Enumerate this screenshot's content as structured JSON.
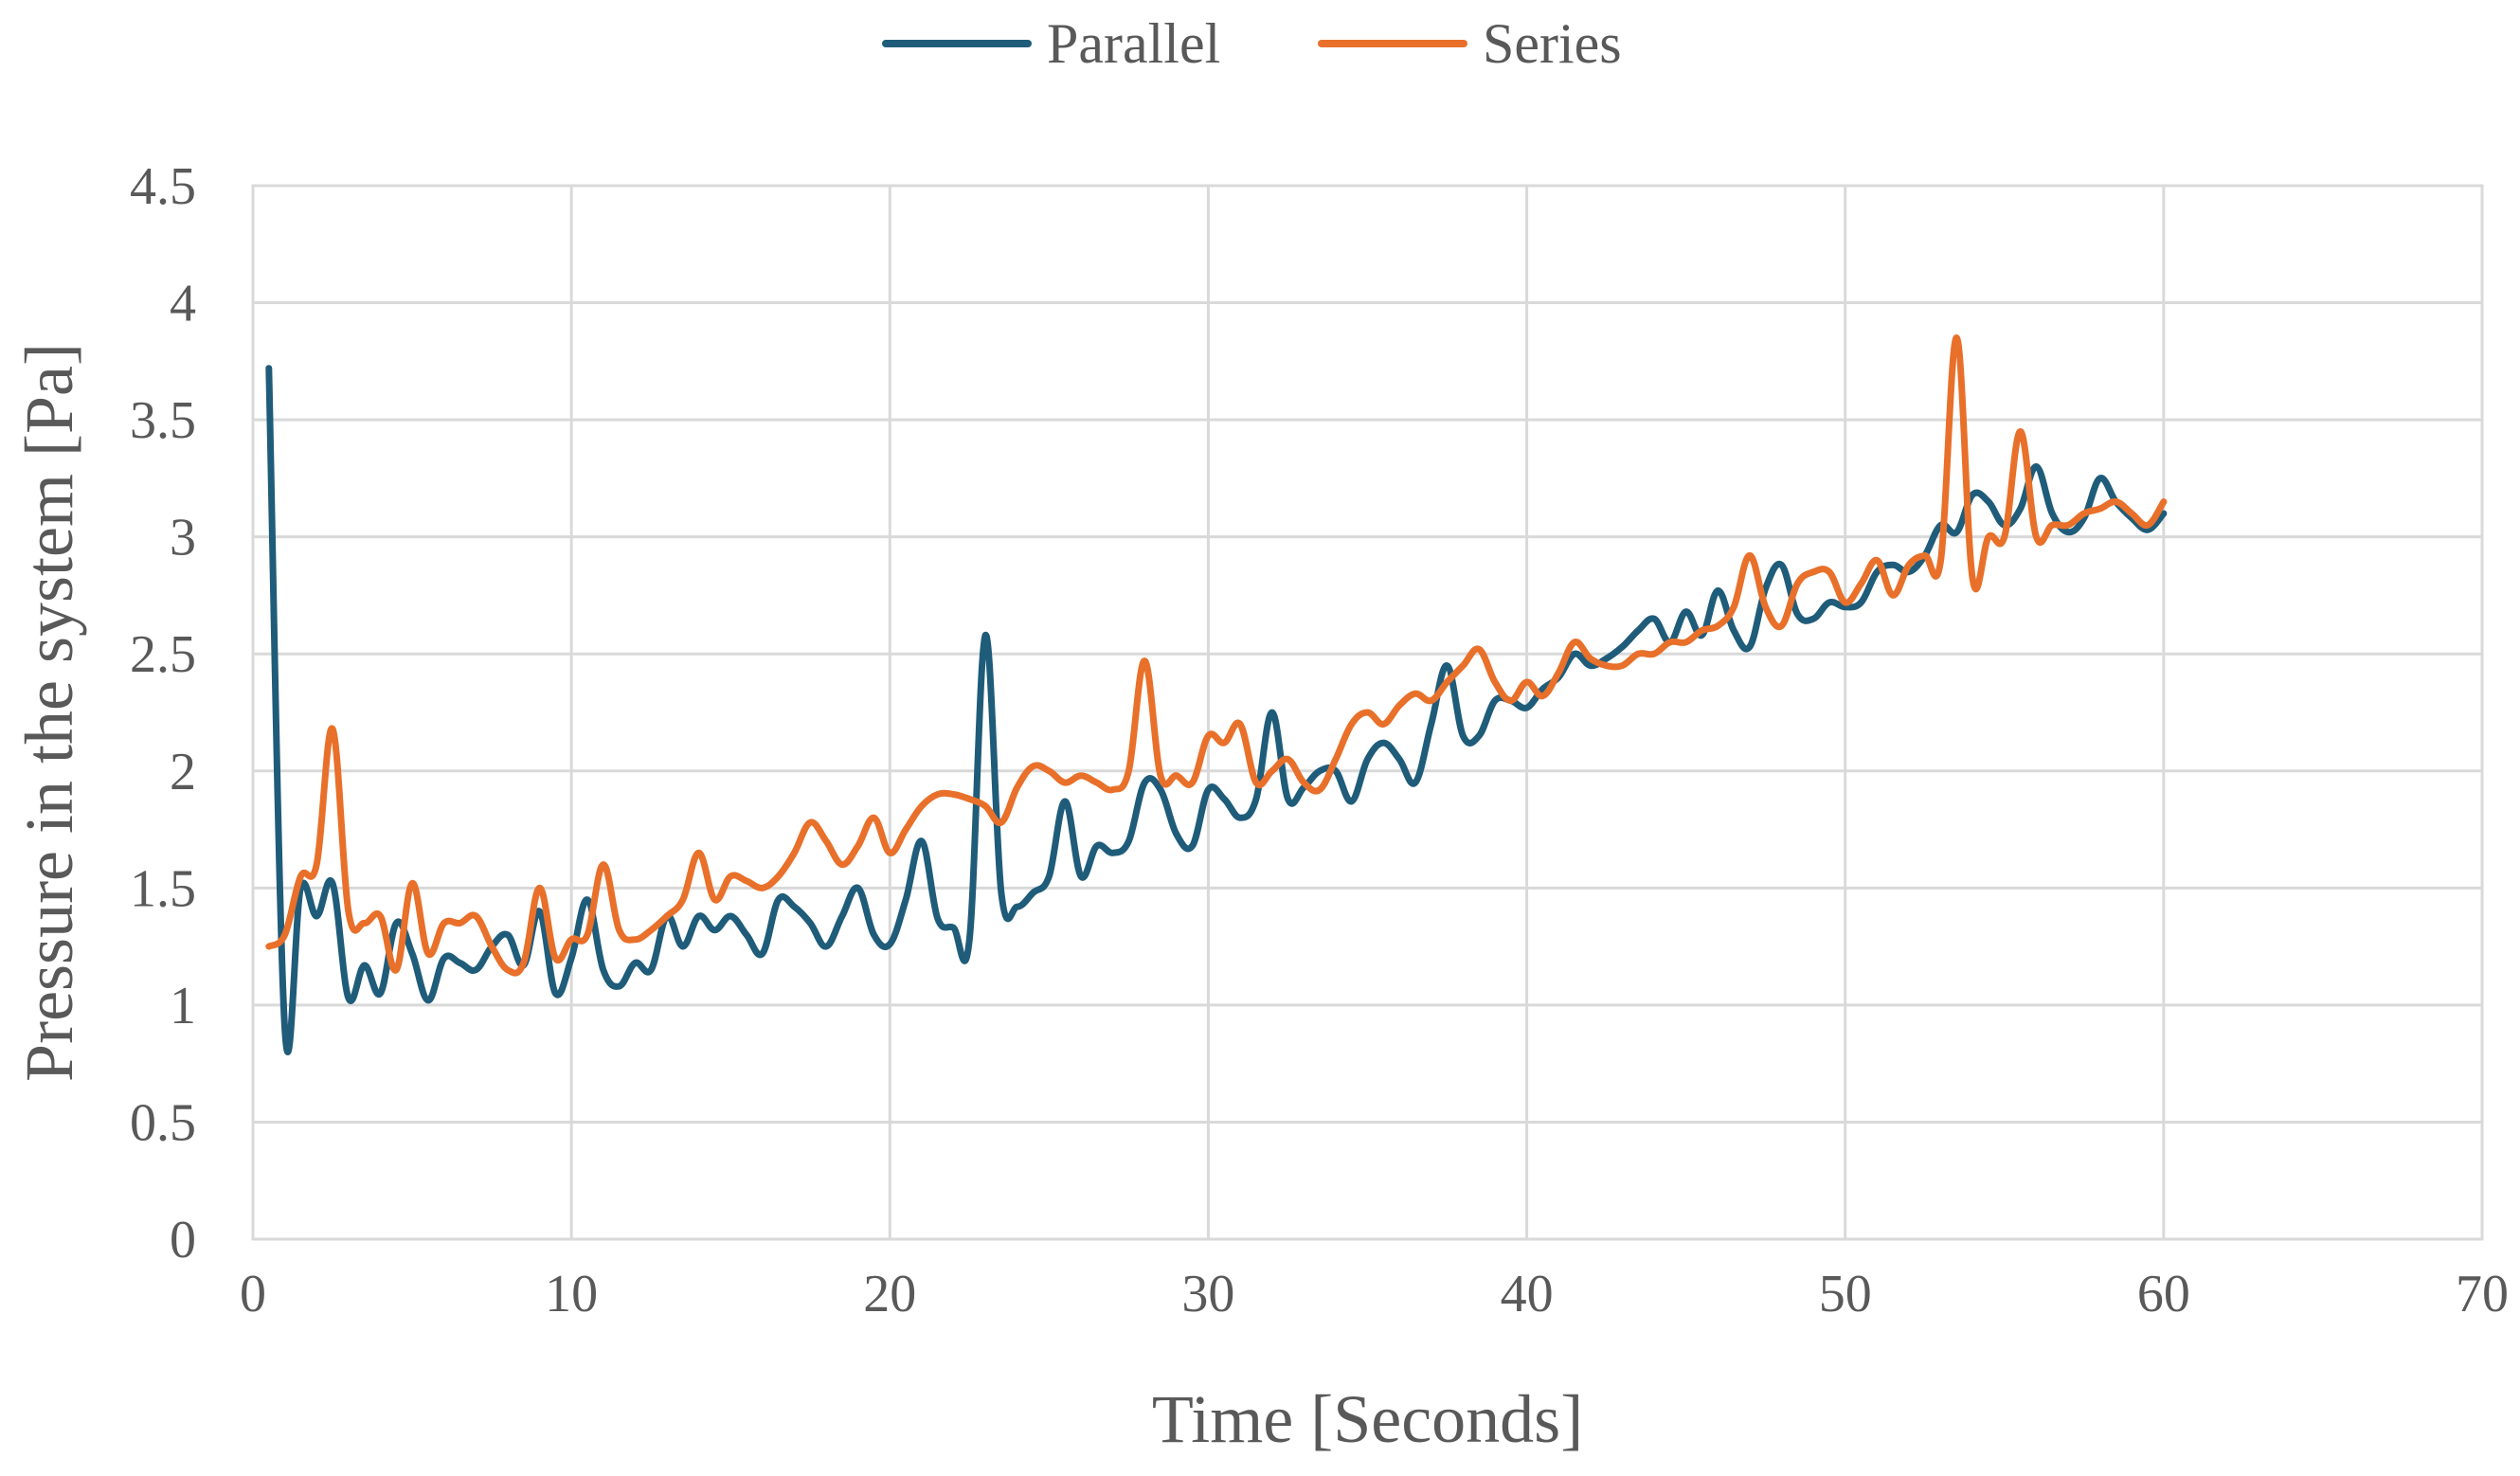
{
  "chart_data": {
    "type": "line",
    "title": "",
    "xlabel": "Time [Seconds]",
    "ylabel": "Pressure in the system [Pa]",
    "xlim": [
      0,
      70
    ],
    "ylim": [
      0,
      4.5
    ],
    "xticks": [
      0,
      10,
      20,
      30,
      40,
      50,
      60,
      70
    ],
    "xtick_labels": [
      "0",
      "10",
      "20",
      "30",
      "40",
      "50",
      "60",
      "70"
    ],
    "yticks": [
      0,
      0.5,
      1,
      1.5,
      2,
      2.5,
      3,
      3.5,
      4,
      4.5
    ],
    "ytick_labels": [
      "0",
      "0.5",
      "1",
      "1.5",
      "2",
      "2.5",
      "3",
      "3.5",
      "4",
      "4.5"
    ],
    "grid": true,
    "legend_position": "top-center",
    "series": [
      {
        "name": "Parallel",
        "color": "#1f5c7a",
        "x": [
          0.5,
          1,
          1.5,
          2,
          2.5,
          3,
          3.5,
          4,
          4.5,
          5,
          5.5,
          6,
          6.5,
          7,
          7.5,
          8,
          8.5,
          9,
          9.5,
          10,
          10.5,
          11,
          11.5,
          12,
          12.5,
          13,
          13.5,
          14,
          14.5,
          15,
          15.5,
          16,
          16.5,
          17,
          17.5,
          18,
          18.5,
          19,
          19.5,
          20,
          20.5,
          21,
          21.5,
          22,
          22.5,
          23,
          23.5,
          24,
          24.5,
          25,
          25.5,
          26,
          26.5,
          27,
          27.5,
          28,
          28.5,
          29,
          29.5,
          30,
          30.5,
          31,
          31.5,
          32,
          32.5,
          33,
          33.5,
          34,
          34.5,
          35,
          35.5,
          36,
          36.5,
          37,
          37.5,
          38,
          38.5,
          39,
          39.5,
          40,
          40.5,
          41,
          41.5,
          42,
          42.5,
          43,
          43.5,
          44,
          44.5,
          45,
          45.5,
          46,
          46.5,
          47,
          47.5,
          48,
          48.5,
          49,
          49.5,
          50,
          50.5,
          51,
          51.5,
          52,
          52.5,
          53,
          53.5,
          54,
          54.5,
          55,
          55.5,
          56,
          56.5,
          57,
          57.5,
          58,
          58.5,
          59,
          59.5,
          60
        ],
        "y": [
          3.72,
          0.9,
          1.5,
          1.38,
          1.52,
          1.03,
          1.17,
          1.05,
          1.35,
          1.22,
          1.02,
          1.2,
          1.18,
          1.15,
          1.25,
          1.3,
          1.17,
          1.4,
          1.05,
          1.2,
          1.45,
          1.15,
          1.08,
          1.18,
          1.15,
          1.38,
          1.25,
          1.38,
          1.32,
          1.38,
          1.3,
          1.22,
          1.45,
          1.42,
          1.35,
          1.25,
          1.38,
          1.5,
          1.3,
          1.26,
          1.45,
          1.7,
          1.37,
          1.33,
          1.28,
          2.58,
          1.48,
          1.42,
          1.48,
          1.55,
          1.87,
          1.55,
          1.68,
          1.65,
          1.7,
          1.95,
          1.92,
          1.73,
          1.68,
          1.92,
          1.88,
          1.8,
          1.88,
          2.25,
          1.88,
          1.93,
          2.0,
          2.0,
          1.87,
          2.05,
          2.12,
          2.05,
          1.95,
          2.2,
          2.45,
          2.15,
          2.15,
          2.3,
          2.3,
          2.27,
          2.35,
          2.4,
          2.5,
          2.45,
          2.48,
          2.53,
          2.6,
          2.65,
          2.55,
          2.68,
          2.58,
          2.77,
          2.6,
          2.53,
          2.78,
          2.88,
          2.67,
          2.65,
          2.72,
          2.7,
          2.72,
          2.85,
          2.88,
          2.85,
          2.92,
          3.05,
          3.02,
          3.18,
          3.15,
          3.05,
          3.12,
          3.3,
          3.1,
          3.02,
          3.08,
          3.25,
          3.15,
          3.08,
          3.03,
          3.1
        ]
      },
      {
        "name": "Series",
        "color": "#e8702a",
        "x": [
          0.5,
          1,
          1.5,
          2,
          2.5,
          3,
          3.5,
          4,
          4.5,
          5,
          5.5,
          6,
          6.5,
          7,
          7.5,
          8,
          8.5,
          9,
          9.5,
          10,
          10.5,
          11,
          11.5,
          12,
          12.5,
          13,
          13.5,
          14,
          14.5,
          15,
          15.5,
          16,
          16.5,
          17,
          17.5,
          18,
          18.5,
          19,
          19.5,
          20,
          20.5,
          21,
          21.5,
          22,
          22.5,
          23,
          23.5,
          24,
          24.5,
          25,
          25.5,
          26,
          26.5,
          27,
          27.5,
          28,
          28.5,
          29,
          29.5,
          30,
          30.5,
          31,
          31.5,
          32,
          32.5,
          33,
          33.5,
          34,
          34.5,
          35,
          35.5,
          36,
          36.5,
          37,
          37.5,
          38,
          38.5,
          39,
          39.5,
          40,
          40.5,
          41,
          41.5,
          42,
          42.5,
          43,
          43.5,
          44,
          44.5,
          45,
          45.5,
          46,
          46.5,
          47,
          47.5,
          48,
          48.5,
          49,
          49.5,
          50,
          50.5,
          51,
          51.5,
          52,
          52.5,
          53,
          53.5,
          54,
          54.5,
          55,
          55.5,
          56,
          56.5,
          57,
          57.5,
          58,
          58.5,
          59,
          59.5,
          60
        ],
        "y": [
          1.25,
          1.3,
          1.55,
          1.6,
          2.18,
          1.4,
          1.35,
          1.38,
          1.15,
          1.52,
          1.22,
          1.35,
          1.35,
          1.38,
          1.25,
          1.15,
          1.18,
          1.5,
          1.2,
          1.28,
          1.3,
          1.6,
          1.32,
          1.28,
          1.32,
          1.38,
          1.45,
          1.65,
          1.45,
          1.55,
          1.53,
          1.5,
          1.55,
          1.65,
          1.78,
          1.7,
          1.6,
          1.68,
          1.8,
          1.65,
          1.75,
          1.85,
          1.9,
          1.9,
          1.88,
          1.85,
          1.78,
          1.93,
          2.02,
          2.0,
          1.95,
          1.98,
          1.95,
          1.92,
          2.0,
          2.47,
          1.98,
          1.98,
          1.95,
          2.15,
          2.12,
          2.2,
          1.95,
          2.0,
          2.05,
          1.95,
          1.92,
          2.05,
          2.2,
          2.25,
          2.2,
          2.28,
          2.33,
          2.3,
          2.38,
          2.45,
          2.52,
          2.38,
          2.3,
          2.38,
          2.32,
          2.42,
          2.55,
          2.48,
          2.45,
          2.45,
          2.5,
          2.5,
          2.55,
          2.55,
          2.6,
          2.62,
          2.7,
          2.92,
          2.7,
          2.62,
          2.8,
          2.85,
          2.85,
          2.72,
          2.8,
          2.9,
          2.75,
          2.88,
          2.92,
          2.9,
          3.85,
          2.82,
          3.0,
          3.0,
          3.45,
          3.0,
          3.05,
          3.05,
          3.1,
          3.12,
          3.15,
          3.1,
          3.05,
          3.15
        ]
      }
    ]
  }
}
